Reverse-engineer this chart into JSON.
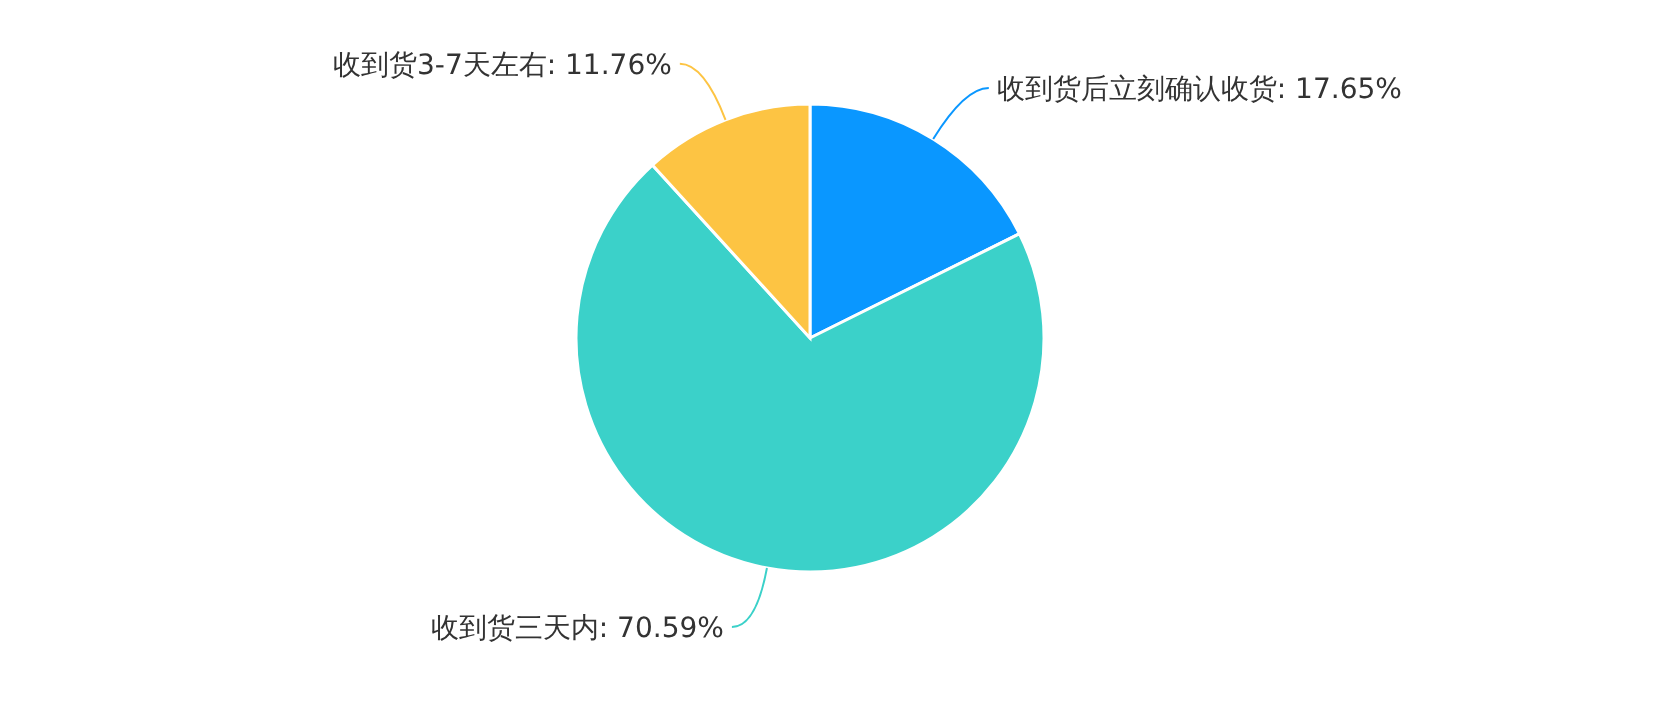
{
  "chart_data": {
    "type": "pie",
    "categories": [
      "收到货后立刻确认收货",
      "收到货三天内",
      "收到货3-7天左右"
    ],
    "values": [
      17.65,
      70.59,
      11.76
    ],
    "value_labels": [
      "17.65%",
      "70.59%",
      "11.76%"
    ],
    "colors": [
      "#0a97ff",
      "#3bd1c9",
      "#fdc443"
    ]
  }
}
